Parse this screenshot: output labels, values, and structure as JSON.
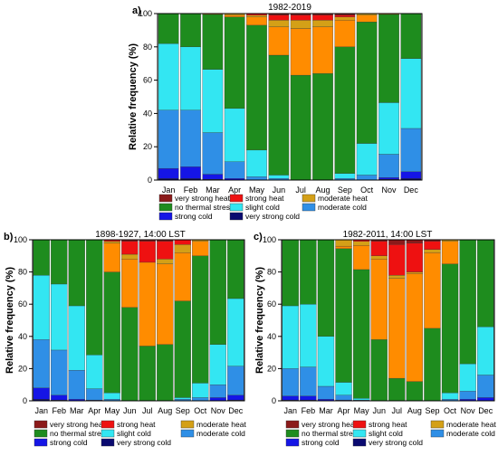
{
  "legend_labels": {
    "very_strong_heat": "very strong heat",
    "strong_heat": "strong heat",
    "moderate_heat": "moderate heat",
    "no_thermal_stress": "no thermal stress",
    "slight_cold": "slight cold",
    "moderate_cold": "moderate cold",
    "strong_cold": "strong cold",
    "very_strong_cold": "very strong cold"
  },
  "colors": {
    "very_strong_heat": "#8B1A1A",
    "strong_heat": "#EE1111",
    "moderate_heat": "#D4A017",
    "slight_heat": "#FF8C00",
    "no_thermal_stress": "#1E8C1E",
    "slight_cold": "#33E6F2",
    "moderate_cold": "#2F8FE6",
    "strong_cold": "#1515E6",
    "very_strong_cold": "#0A0A70"
  },
  "chart_data": [
    {
      "type": "bar",
      "stacked": true,
      "panel_label": "a)",
      "title": "1982-2019",
      "ylabel": "Relative frequency (%)",
      "xlabel": "",
      "ylim": [
        0,
        100
      ],
      "yticks": [
        0,
        20,
        40,
        60,
        80,
        100
      ],
      "categories": [
        "Jan",
        "Feb",
        "Mar",
        "Apr",
        "May",
        "Jun",
        "Jul",
        "Aug",
        "Sep",
        "Oct",
        "Nov",
        "Dec"
      ],
      "series": [
        {
          "key": "very_strong_cold",
          "values": [
            1,
            1,
            0.5,
            0,
            0,
            0,
            0,
            0,
            0,
            0,
            0.5,
            1
          ]
        },
        {
          "key": "strong_cold",
          "values": [
            6,
            7,
            3,
            1,
            0,
            0,
            0,
            0,
            0,
            0,
            1,
            4
          ]
        },
        {
          "key": "moderate_cold",
          "values": [
            35,
            34,
            25,
            10,
            2,
            1,
            0,
            0,
            1,
            3,
            14,
            26
          ]
        },
        {
          "key": "slight_cold",
          "values": [
            40,
            38,
            38,
            32,
            16,
            2,
            0,
            0,
            3,
            19,
            31,
            42
          ]
        },
        {
          "key": "no_thermal_stress",
          "values": [
            18,
            20,
            33,
            55,
            75,
            72,
            63,
            64,
            76,
            73,
            53,
            27
          ]
        },
        {
          "key": "slight_heat",
          "values": [
            0,
            0,
            0.5,
            1,
            5,
            17,
            28,
            28,
            16,
            4,
            0.5,
            0
          ]
        },
        {
          "key": "moderate_heat",
          "values": [
            0,
            0,
            0,
            1,
            1,
            4,
            5,
            4,
            2,
            1,
            0,
            0
          ]
        },
        {
          "key": "strong_heat",
          "values": [
            0,
            0,
            0,
            0,
            1,
            3,
            3,
            3,
            1,
            0,
            0,
            0
          ]
        },
        {
          "key": "very_strong_heat",
          "values": [
            0,
            0,
            0,
            0,
            0,
            1,
            1,
            1,
            1,
            0,
            0,
            0
          ]
        }
      ]
    },
    {
      "type": "bar",
      "stacked": true,
      "panel_label": "b)",
      "title": "1898-1927, 14:00 LST",
      "ylabel": "Relative frequency (%)",
      "xlabel": "",
      "ylim": [
        0,
        100
      ],
      "yticks": [
        0,
        20,
        40,
        60,
        80,
        100
      ],
      "categories": [
        "Jan",
        "Feb",
        "Mar",
        "Apr",
        "May",
        "Jun",
        "Jul",
        "Aug",
        "Sep",
        "Oct",
        "Nov",
        "Dec"
      ],
      "series": [
        {
          "key": "very_strong_cold",
          "values": [
            1,
            0.5,
            0,
            0,
            0,
            0,
            0,
            0,
            0,
            0,
            0,
            0.5
          ]
        },
        {
          "key": "strong_cold",
          "values": [
            7,
            3,
            1,
            0.5,
            0,
            0,
            0,
            0,
            0,
            0,
            2,
            3
          ]
        },
        {
          "key": "moderate_cold",
          "values": [
            30,
            28,
            18,
            7,
            1,
            0,
            0,
            0,
            1,
            2,
            8,
            18
          ]
        },
        {
          "key": "slight_cold",
          "values": [
            40,
            41,
            40,
            21,
            4,
            0,
            0,
            0,
            1,
            9,
            25,
            42
          ]
        },
        {
          "key": "no_thermal_stress",
          "values": [
            22,
            27.5,
            41,
            71.5,
            75,
            58,
            34,
            35,
            60,
            79,
            65,
            36.5
          ]
        },
        {
          "key": "slight_heat",
          "values": [
            0,
            0,
            0,
            0,
            18,
            30,
            52,
            50,
            30,
            9,
            0,
            0
          ]
        },
        {
          "key": "moderate_heat",
          "values": [
            0,
            0,
            0,
            0,
            1,
            3,
            0,
            3,
            5,
            1,
            0,
            0
          ]
        },
        {
          "key": "strong_heat",
          "values": [
            0,
            0,
            0,
            0,
            1,
            8,
            13,
            11,
            3,
            0,
            0,
            0
          ]
        },
        {
          "key": "very_strong_heat",
          "values": [
            0,
            0,
            0,
            0,
            0,
            1,
            1,
            1,
            0,
            0,
            0,
            0
          ]
        }
      ]
    },
    {
      "type": "bar",
      "stacked": true,
      "panel_label": "c)",
      "title": "1982-2011, 14:00 LST",
      "ylabel": "Relative frequency (%)",
      "xlabel": "",
      "ylim": [
        0,
        100
      ],
      "yticks": [
        0,
        20,
        40,
        60,
        80,
        100
      ],
      "categories": [
        "Jan",
        "Feb",
        "Mar",
        "Apr",
        "May",
        "Jun",
        "Jul",
        "Aug",
        "Sep",
        "Oct",
        "Nov",
        "Dec"
      ],
      "series": [
        {
          "key": "very_strong_cold",
          "values": [
            0.5,
            0.5,
            0,
            0,
            0,
            0,
            0,
            0,
            0,
            0,
            0,
            0
          ]
        },
        {
          "key": "strong_cold",
          "values": [
            2.5,
            2.5,
            1,
            0.5,
            0,
            0,
            0,
            0,
            0,
            0,
            1,
            2
          ]
        },
        {
          "key": "moderate_cold",
          "values": [
            17,
            18,
            8,
            3,
            0.5,
            0,
            0,
            0,
            0,
            1,
            5,
            14
          ]
        },
        {
          "key": "slight_cold",
          "values": [
            39,
            39,
            31,
            8,
            1,
            0,
            0,
            0,
            0,
            4,
            17,
            30
          ]
        },
        {
          "key": "no_thermal_stress",
          "values": [
            41,
            40,
            60,
            83,
            80,
            38,
            14,
            12,
            45,
            80,
            77,
            54
          ]
        },
        {
          "key": "slight_heat",
          "values": [
            0,
            0,
            0,
            1.5,
            15,
            50,
            62,
            67,
            47,
            14,
            0,
            0
          ]
        },
        {
          "key": "moderate_heat",
          "values": [
            0,
            0,
            0,
            4,
            2.5,
            2,
            2,
            1,
            2,
            1,
            0,
            0
          ]
        },
        {
          "key": "strong_heat",
          "values": [
            0,
            0,
            0,
            0,
            1,
            9,
            19,
            18,
            5,
            0,
            0,
            0
          ]
        },
        {
          "key": "very_strong_heat",
          "values": [
            0,
            0,
            0,
            0,
            0,
            1,
            3,
            2,
            1,
            0,
            0,
            0
          ]
        }
      ]
    }
  ]
}
